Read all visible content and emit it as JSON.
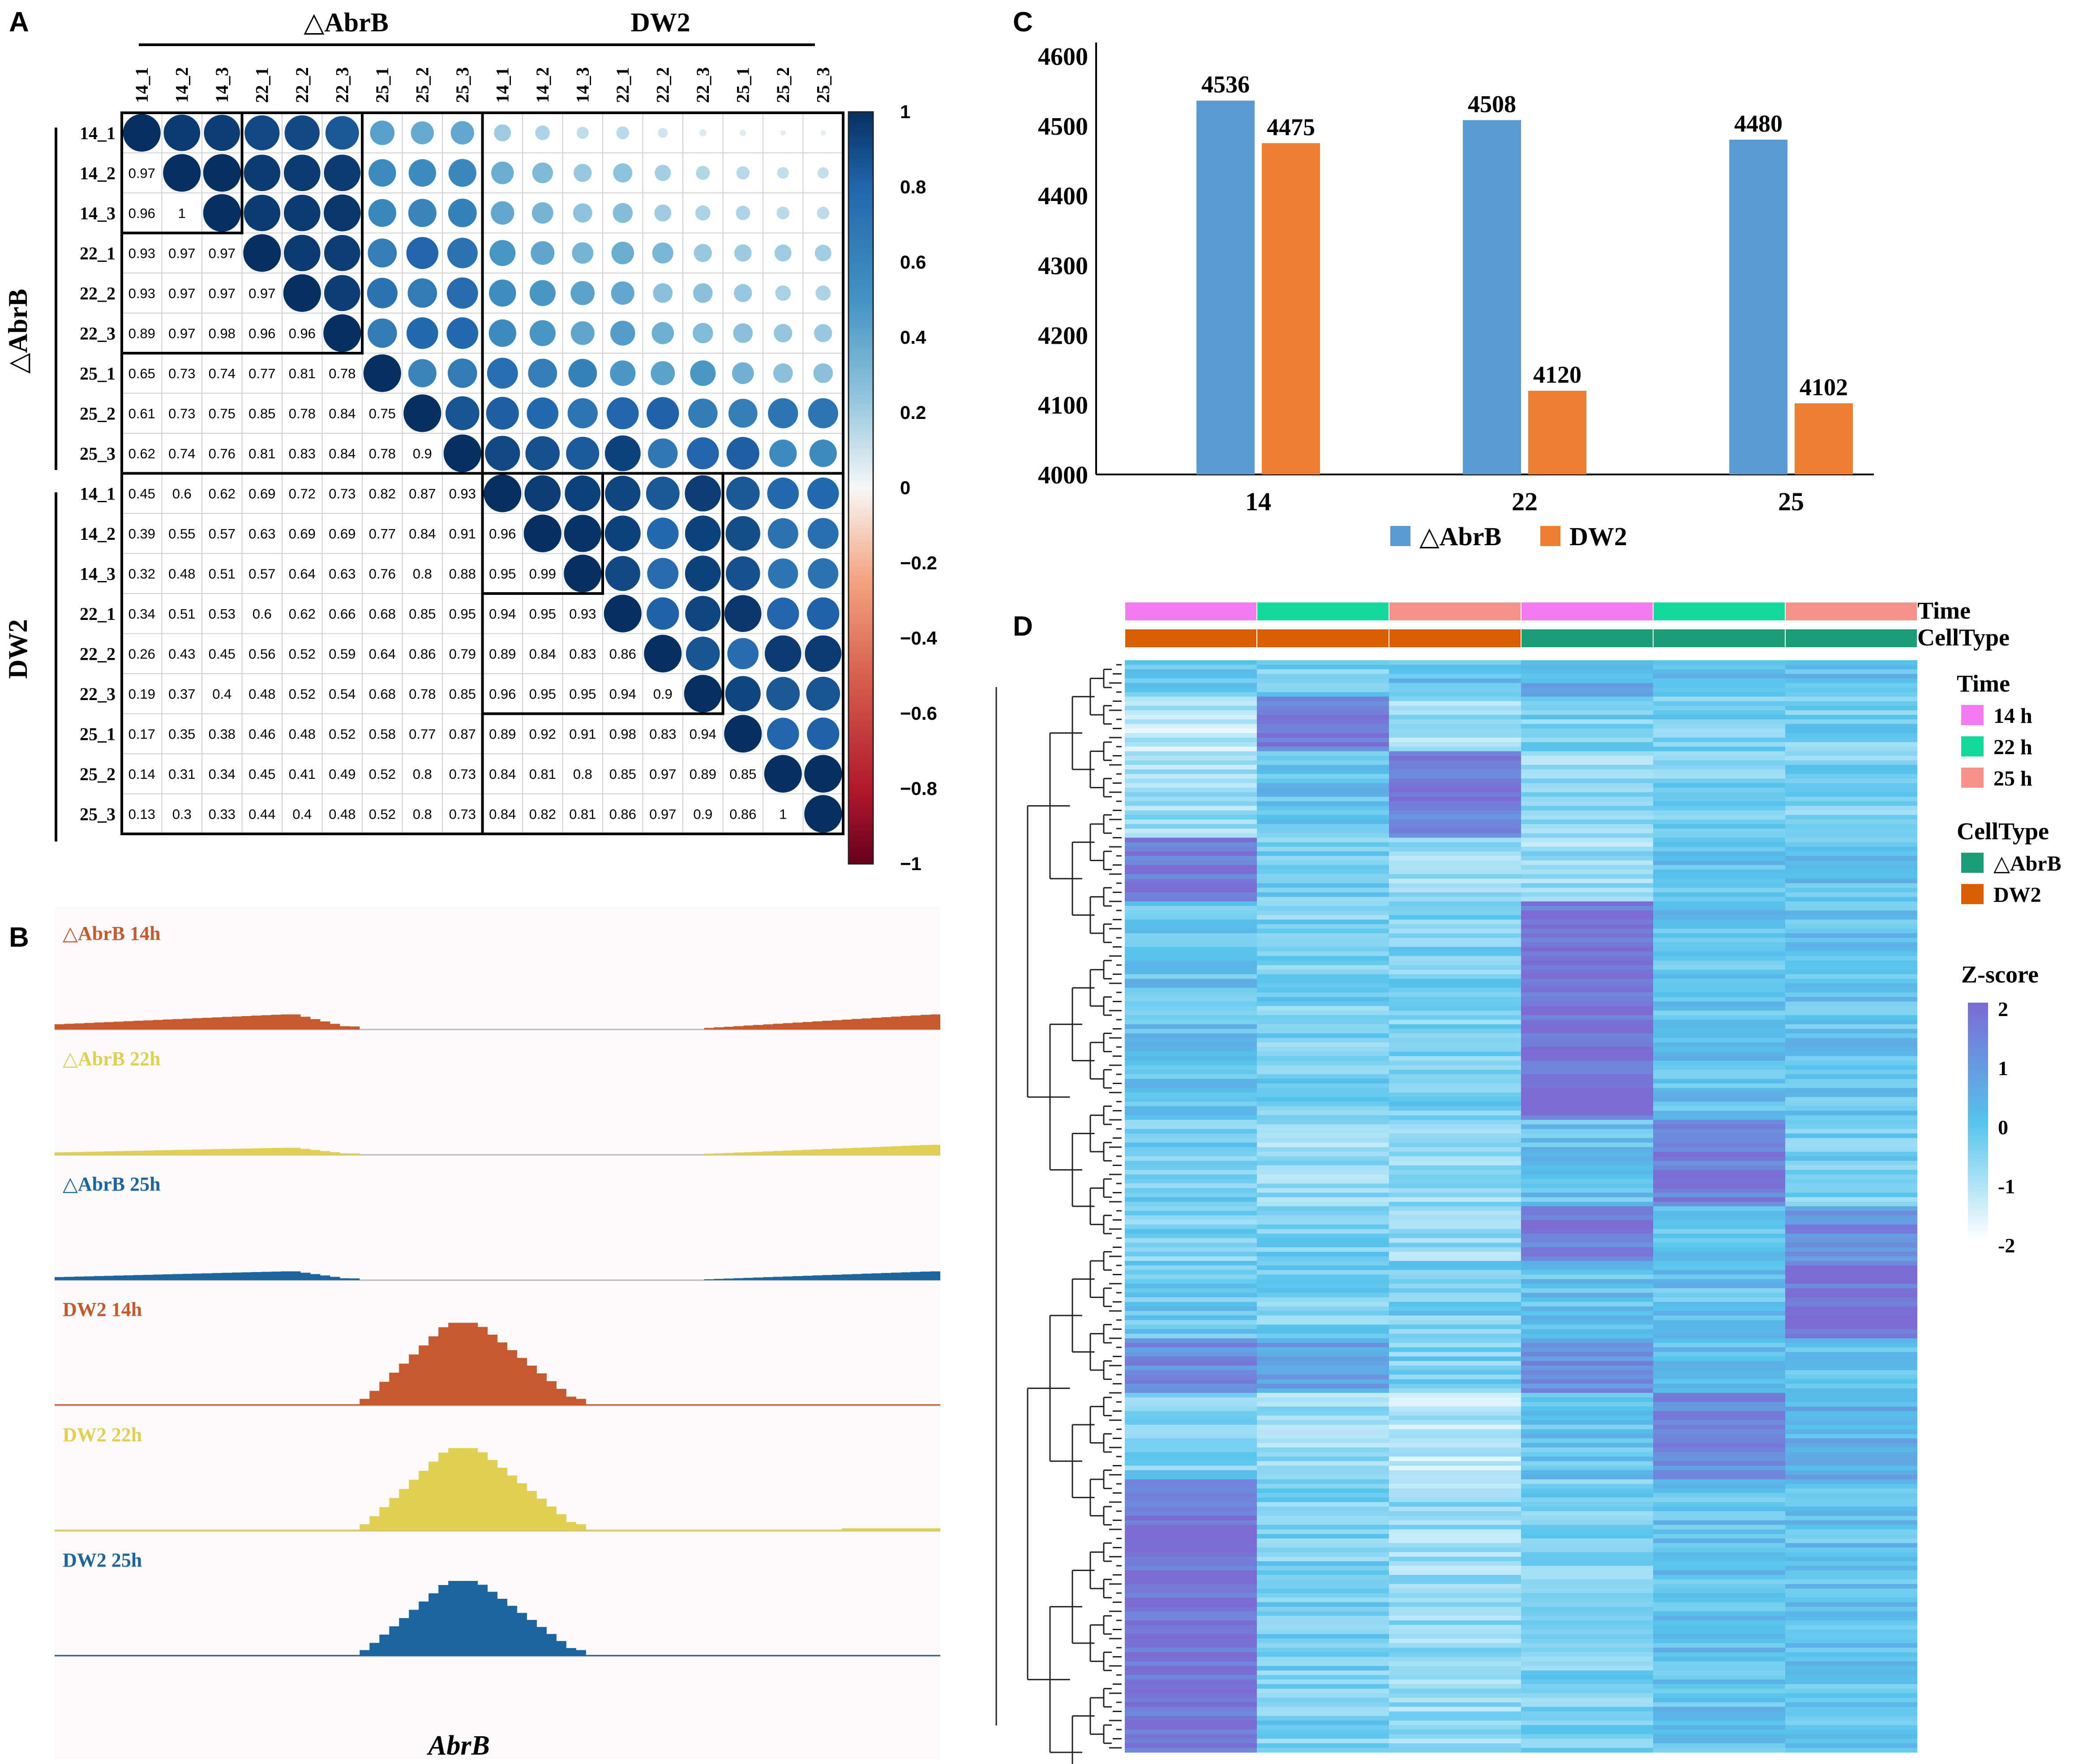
{
  "panel_labels": {
    "a": "A",
    "b": "B",
    "c": "C",
    "d": "D"
  },
  "colors": {
    "abrb": "#5b9bd5",
    "dw2": "#ed7d31",
    "track_orange": "#c65a2e",
    "track_yellow": "#e0cf52",
    "track_blue": "#1d65a0",
    "track_bg": "#fbf9fa",
    "corr_dark": "#053061",
    "corr_neg": "#67001f",
    "time_14": "#f37af0",
    "time_22": "#13d99b",
    "time_25": "#f6928a",
    "celltype_abrb": "#1b9e77",
    "celltype_dw2": "#d95f02",
    "heat_low": "#ffffff",
    "heat_mid": "#55c3ec",
    "heat_high": "#7b6bd3"
  },
  "panel_a": {
    "group_labels": [
      "△AbrB",
      "DW2"
    ],
    "samples": [
      "14_1",
      "14_2",
      "14_3",
      "22_1",
      "22_2",
      "22_3",
      "25_1",
      "25_2",
      "25_3",
      "14_1",
      "14_2",
      "14_3",
      "22_1",
      "22_2",
      "22_3",
      "25_1",
      "25_2",
      "25_3"
    ],
    "lower_triangle": [
      [],
      [
        "0.97"
      ],
      [
        "0.96",
        "1"
      ],
      [
        "0.93",
        "0.97",
        "0.97"
      ],
      [
        "0.93",
        "0.97",
        "0.97",
        "0.97"
      ],
      [
        "0.89",
        "0.97",
        "0.98",
        "0.96",
        "0.96"
      ],
      [
        "0.65",
        "0.73",
        "0.74",
        "0.77",
        "0.81",
        "0.78"
      ],
      [
        "0.61",
        "0.73",
        "0.75",
        "0.85",
        "0.78",
        "0.84",
        "0.75"
      ],
      [
        "0.62",
        "0.74",
        "0.76",
        "0.81",
        "0.83",
        "0.84",
        "0.78",
        "0.9"
      ],
      [
        "0.45",
        "0.6",
        "0.62",
        "0.69",
        "0.72",
        "0.73",
        "0.82",
        "0.87",
        "0.93"
      ],
      [
        "0.39",
        "0.55",
        "0.57",
        "0.63",
        "0.69",
        "0.69",
        "0.77",
        "0.84",
        "0.91",
        "0.96"
      ],
      [
        "0.32",
        "0.48",
        "0.51",
        "0.57",
        "0.64",
        "0.63",
        "0.76",
        "0.8",
        "0.88",
        "0.95",
        "0.99"
      ],
      [
        "0.34",
        "0.51",
        "0.53",
        "0.6",
        "0.62",
        "0.66",
        "0.68",
        "0.85",
        "0.95",
        "0.94",
        "0.95",
        "0.93"
      ],
      [
        "0.26",
        "0.43",
        "0.45",
        "0.56",
        "0.52",
        "0.59",
        "0.64",
        "0.86",
        "0.79",
        "0.89",
        "0.84",
        "0.83",
        "0.86"
      ],
      [
        "0.19",
        "0.37",
        "0.4",
        "0.48",
        "0.52",
        "0.54",
        "0.68",
        "0.78",
        "0.85",
        "0.96",
        "0.95",
        "0.95",
        "0.94",
        "0.9"
      ],
      [
        "0.17",
        "0.35",
        "0.38",
        "0.46",
        "0.48",
        "0.52",
        "0.58",
        "0.77",
        "0.87",
        "0.89",
        "0.92",
        "0.91",
        "0.98",
        "0.83",
        "0.94"
      ],
      [
        "0.14",
        "0.31",
        "0.34",
        "0.45",
        "0.41",
        "0.49",
        "0.52",
        "0.8",
        "0.73",
        "0.84",
        "0.81",
        "0.8",
        "0.85",
        "0.97",
        "0.89",
        "0.85"
      ],
      [
        "0.13",
        "0.3",
        "0.33",
        "0.44",
        "0.4",
        "0.48",
        "0.52",
        "0.8",
        "0.73",
        "0.84",
        "0.82",
        "0.81",
        "0.86",
        "0.97",
        "0.9",
        "0.86",
        "1"
      ]
    ],
    "colorbar_ticks": [
      "1",
      "0.8",
      "0.6",
      "0.4",
      "0.2",
      "0",
      "−0.2",
      "−0.4",
      "−0.6",
      "−0.8",
      "−1"
    ]
  },
  "panel_b": {
    "tracks": [
      {
        "label": "△AbrB 14h",
        "color_key": "track_orange"
      },
      {
        "label": "△AbrB 22h",
        "color_key": "track_yellow"
      },
      {
        "label": "△AbrB 25h",
        "color_key": "track_blue"
      },
      {
        "label": "DW2 14h",
        "color_key": "track_orange"
      },
      {
        "label": "DW2 22h",
        "color_key": "track_yellow"
      },
      {
        "label": "DW2 25h",
        "color_key": "track_blue"
      }
    ],
    "gene_label": "AbrB"
  },
  "chart_data": {
    "type": "bar",
    "categories": [
      "14",
      "22",
      "25"
    ],
    "series": [
      {
        "name": "△AbrB",
        "values": [
          4536,
          4508,
          4480
        ]
      },
      {
        "name": "DW2",
        "values": [
          4475,
          4120,
          4102
        ]
      }
    ],
    "value_labels": [
      [
        "4536",
        "4508",
        "4480"
      ],
      [
        "4475",
        "4120",
        "4102"
      ]
    ],
    "ylim": [
      4000,
      4600
    ],
    "yticks": [
      "4000",
      "4100",
      "4200",
      "4300",
      "4400",
      "4500",
      "4600"
    ],
    "legend": [
      "△AbrB",
      "DW2"
    ],
    "legend_position": "bottom"
  },
  "panel_d": {
    "annotation_rows": [
      "Time",
      "CellType"
    ],
    "legend_time_title": "Time",
    "legend_time": [
      "14 h",
      "22 h",
      "25 h"
    ],
    "legend_celltype_title": "CellType",
    "legend_celltype": [
      "△AbrB",
      "DW2"
    ],
    "zscore_title": "Z-score",
    "zscore_ticks": [
      "2",
      "1",
      "0",
      "-1",
      "-2"
    ]
  }
}
